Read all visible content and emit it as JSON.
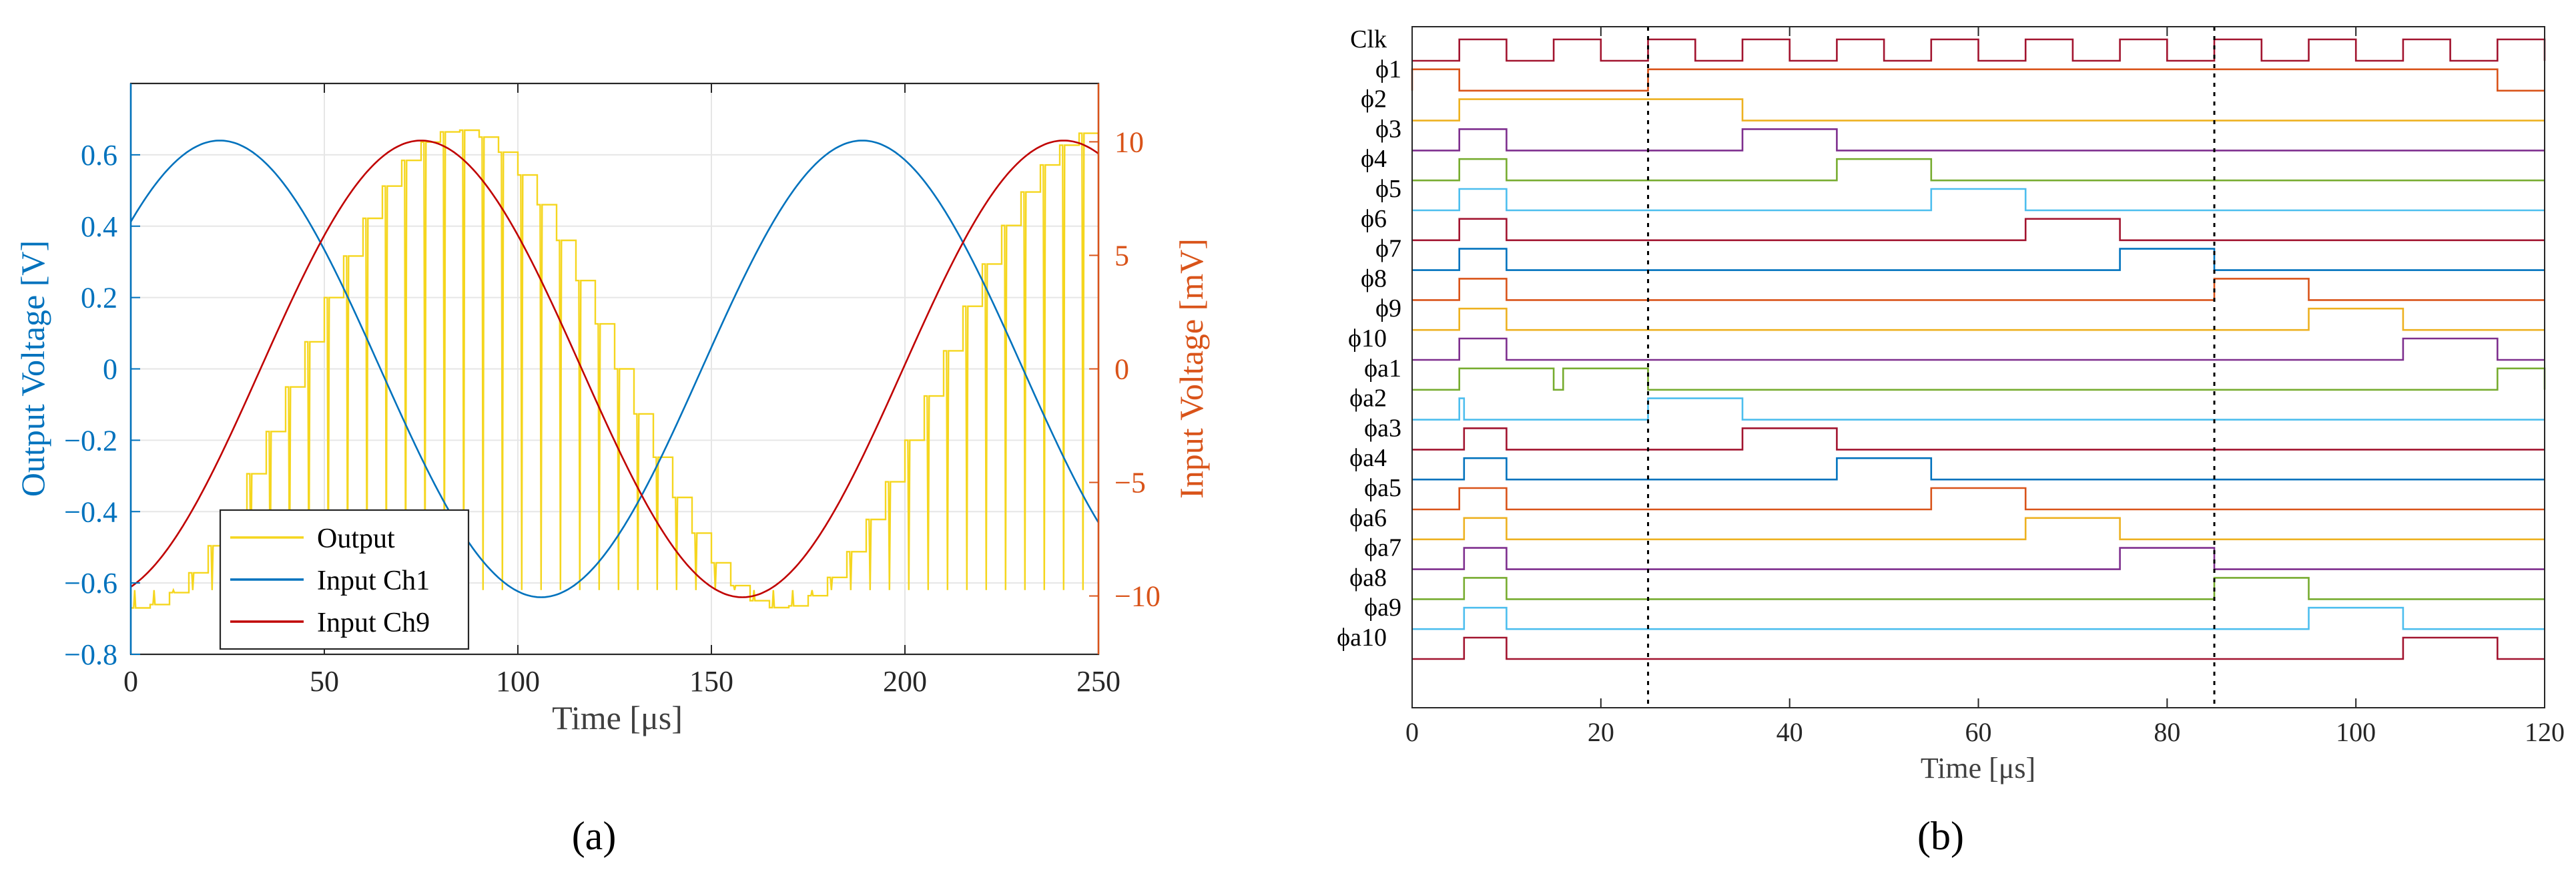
{
  "chart_data": [
    {
      "panel_label": "(a)",
      "type": "line",
      "xlabel": "Time [μs]",
      "ylabel_left": "Output Voltage [V]",
      "ylabel_right": "Input Voltage [mV]",
      "xlim": [
        0,
        250
      ],
      "ylim_left": [
        -0.8,
        0.8
      ],
      "ylim_right": [
        -12.57,
        12.57
      ],
      "xticks": [
        0,
        50,
        100,
        150,
        200,
        250
      ],
      "xtick_labels": [
        "0",
        "50",
        "100",
        "150",
        "200",
        "250"
      ],
      "yticks_left": [
        -0.8,
        -0.6,
        -0.4,
        -0.2,
        0,
        0.2,
        0.4,
        0.6
      ],
      "ytick_labels_left": [
        "−0.8",
        "−0.6",
        "−0.4",
        "−0.2",
        "0",
        "0.2",
        "0.4",
        "0.6"
      ],
      "yticks_right": [
        -10,
        -5,
        0,
        5,
        10
      ],
      "ytick_labels_right": [
        "−10",
        "−5",
        "0",
        "5",
        "10"
      ],
      "grid": true,
      "legend_position": "bottom-left",
      "colors": {
        "left_axis": "#0072BD",
        "right_axis": "#D95319"
      },
      "series": [
        {
          "name": "Output",
          "color": "#F5D61E",
          "axis": "left",
          "form": "sampled-staircase",
          "envelope_amplitude": 0.67,
          "period": 166,
          "zero_crossing": 42,
          "dips_to": -0.62,
          "step": 5
        },
        {
          "name": "Input Ch1",
          "color": "#0072BD",
          "axis": "left",
          "form": "sine",
          "amplitude": 0.64,
          "period": 166,
          "phase_zero": -18.5
        },
        {
          "name": "Input Ch9",
          "color": "#C00000",
          "axis": "left",
          "form": "sine",
          "amplitude": 0.64,
          "period": 166,
          "phase_zero": 33.5
        }
      ]
    },
    {
      "panel_label": "(b)",
      "type": "timing",
      "xlabel": "Time [μs]",
      "xlim": [
        0,
        120
      ],
      "xticks": [
        0,
        20,
        40,
        60,
        80,
        100,
        120
      ],
      "xtick_labels": [
        "0",
        "20",
        "40",
        "60",
        "80",
        "100",
        "120"
      ],
      "markers": [
        25,
        85
      ],
      "clock": {
        "name": "Clk",
        "period": 10,
        "first_rise": 5,
        "high_duration": 5
      },
      "signals": [
        {
          "name": "Clk",
          "color": "#A2142F"
        },
        {
          "name": "ϕ1",
          "color": "#D95319",
          "pulses": [
            [
              0,
              5
            ],
            [
              25,
              115
            ]
          ]
        },
        {
          "name": "ϕ2",
          "color": "#EDB120",
          "pulses": [
            [
              5,
              35
            ]
          ]
        },
        {
          "name": "ϕ3",
          "color": "#7E2F8E",
          "pulses": [
            [
              5,
              10
            ],
            [
              35,
              45
            ]
          ]
        },
        {
          "name": "ϕ4",
          "color": "#77AC30",
          "pulses": [
            [
              5,
              10
            ],
            [
              45,
              55
            ]
          ]
        },
        {
          "name": "ϕ5",
          "color": "#4DBEEE",
          "pulses": [
            [
              5,
              10
            ],
            [
              55,
              65
            ]
          ]
        },
        {
          "name": "ϕ6",
          "color": "#A2142F",
          "pulses": [
            [
              5,
              10
            ],
            [
              65,
              75
            ]
          ]
        },
        {
          "name": "ϕ7",
          "color": "#0072BD",
          "pulses": [
            [
              5,
              10
            ],
            [
              75,
              85
            ]
          ]
        },
        {
          "name": "ϕ8",
          "color": "#D95319",
          "pulses": [
            [
              5,
              10
            ],
            [
              85,
              95
            ]
          ]
        },
        {
          "name": "ϕ9",
          "color": "#EDB120",
          "pulses": [
            [
              5,
              10
            ],
            [
              95,
              105
            ]
          ]
        },
        {
          "name": "ϕ10",
          "color": "#7E2F8E",
          "pulses": [
            [
              5,
              10
            ],
            [
              105,
              115
            ]
          ]
        },
        {
          "name": "ϕa1",
          "color": "#77AC30",
          "pulses": [
            [
              5,
              15
            ],
            [
              16,
              25
            ],
            [
              115,
              120
            ]
          ]
        },
        {
          "name": "ϕa2",
          "color": "#4DBEEE",
          "pulses": [
            [
              5,
              5.5
            ],
            [
              25,
              35
            ]
          ]
        },
        {
          "name": "ϕa3",
          "color": "#A2142F",
          "pulses": [
            [
              5.5,
              10
            ],
            [
              35,
              45
            ]
          ]
        },
        {
          "name": "ϕa4",
          "color": "#0072BD",
          "pulses": [
            [
              5.5,
              10
            ],
            [
              45,
              55
            ]
          ]
        },
        {
          "name": "ϕa5",
          "color": "#D95319",
          "pulses": [
            [
              5,
              10
            ],
            [
              55,
              65
            ]
          ]
        },
        {
          "name": "ϕa6",
          "color": "#EDB120",
          "pulses": [
            [
              5.5,
              10
            ],
            [
              65,
              75
            ]
          ]
        },
        {
          "name": "ϕa7",
          "color": "#7E2F8E",
          "pulses": [
            [
              5.5,
              10
            ],
            [
              75,
              85
            ]
          ]
        },
        {
          "name": "ϕa8",
          "color": "#77AC30",
          "pulses": [
            [
              5.5,
              10
            ],
            [
              85,
              95
            ]
          ]
        },
        {
          "name": "ϕa9",
          "color": "#4DBEEE",
          "pulses": [
            [
              5.5,
              10
            ],
            [
              95,
              105
            ]
          ]
        },
        {
          "name": "ϕa10",
          "color": "#A2142F",
          "pulses": [
            [
              5.5,
              10
            ],
            [
              105,
              115
            ]
          ]
        }
      ]
    }
  ]
}
